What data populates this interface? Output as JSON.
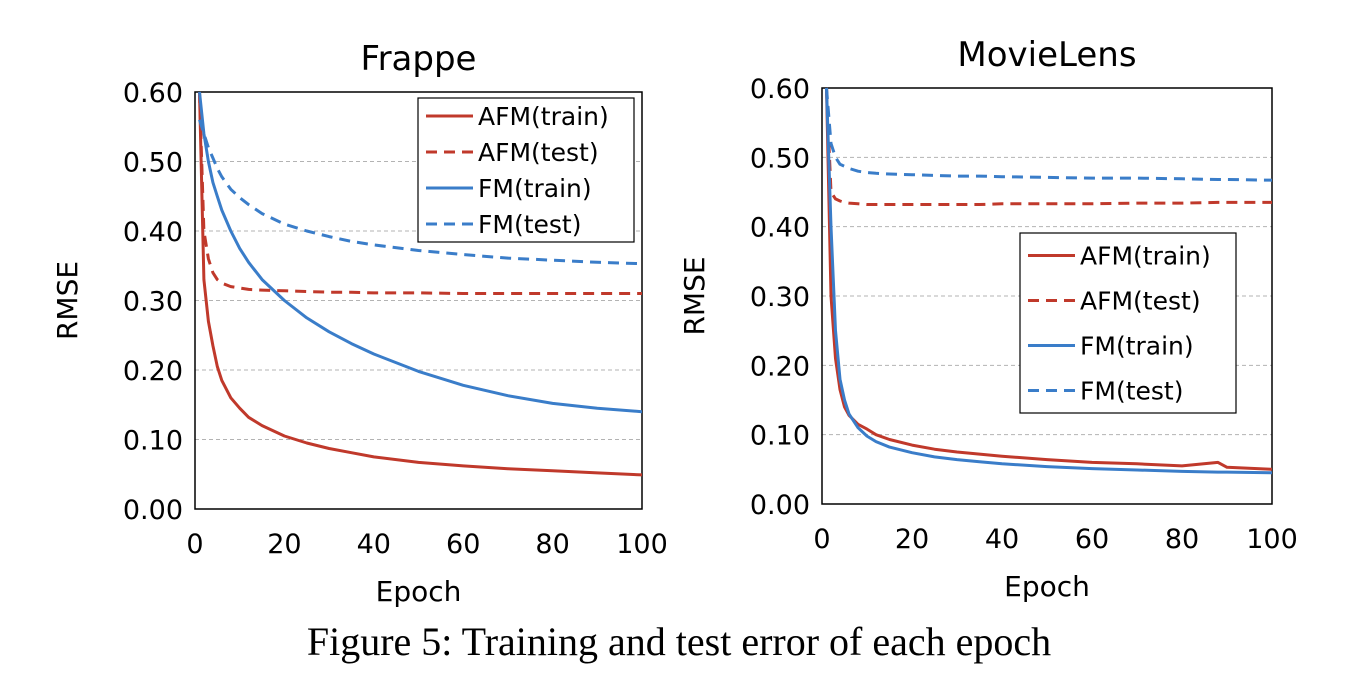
{
  "caption": "Figure 5: Training and test error of each epoch",
  "colors": {
    "afm": "#c0392b",
    "fm": "#3a7dc9",
    "grid": "#b3b3b3"
  },
  "chart_data": [
    {
      "type": "line",
      "title": "Frappe",
      "xlabel": "Epoch",
      "ylabel": "RMSE",
      "xlim": [
        0,
        100
      ],
      "ylim": [
        0,
        0.6
      ],
      "xticks": [
        "0",
        "20",
        "40",
        "60",
        "80",
        "100"
      ],
      "yticks": [
        "0.00",
        "0.10",
        "0.20",
        "0.30",
        "0.40",
        "0.50",
        "0.60"
      ],
      "legend_position": "top-right",
      "x": [
        1,
        2,
        3,
        4,
        5,
        6,
        8,
        10,
        12,
        15,
        20,
        25,
        30,
        35,
        40,
        50,
        60,
        70,
        80,
        90,
        100
      ],
      "series": [
        {
          "name": "AFM(train)",
          "style": "solid",
          "color": "#c0392b",
          "values": [
            0.6,
            0.33,
            0.27,
            0.235,
            0.205,
            0.185,
            0.16,
            0.145,
            0.132,
            0.12,
            0.105,
            0.095,
            0.087,
            0.081,
            0.075,
            0.067,
            0.062,
            0.058,
            0.055,
            0.052,
            0.049
          ]
        },
        {
          "name": "AFM(test)",
          "style": "dashed",
          "color": "#c0392b",
          "values": [
            0.6,
            0.4,
            0.36,
            0.34,
            0.33,
            0.325,
            0.32,
            0.318,
            0.316,
            0.315,
            0.314,
            0.313,
            0.312,
            0.312,
            0.311,
            0.311,
            0.31,
            0.31,
            0.31,
            0.31,
            0.31
          ]
        },
        {
          "name": "FM(train)",
          "style": "solid",
          "color": "#3a7dc9",
          "values": [
            0.6,
            0.54,
            0.5,
            0.47,
            0.45,
            0.43,
            0.4,
            0.375,
            0.355,
            0.33,
            0.3,
            0.275,
            0.255,
            0.238,
            0.223,
            0.198,
            0.178,
            0.163,
            0.152,
            0.145,
            0.14
          ]
        },
        {
          "name": "FM(test)",
          "style": "dashed",
          "color": "#3a7dc9",
          "values": [
            0.56,
            0.54,
            0.52,
            0.505,
            0.49,
            0.478,
            0.46,
            0.448,
            0.438,
            0.425,
            0.41,
            0.4,
            0.392,
            0.385,
            0.38,
            0.372,
            0.366,
            0.361,
            0.358,
            0.355,
            0.353
          ]
        }
      ]
    },
    {
      "type": "line",
      "title": "MovieLens",
      "xlabel": "Epoch",
      "ylabel": "RMSE",
      "xlim": [
        0,
        100
      ],
      "ylim": [
        0,
        0.6
      ],
      "xticks": [
        "0",
        "20",
        "40",
        "60",
        "80",
        "100"
      ],
      "yticks": [
        "0.00",
        "0.10",
        "0.20",
        "0.30",
        "0.40",
        "0.50",
        "0.60"
      ],
      "legend_position": "center-right",
      "x": [
        1,
        2,
        3,
        4,
        5,
        6,
        8,
        10,
        12,
        15,
        20,
        25,
        30,
        35,
        40,
        50,
        60,
        70,
        80,
        88,
        90,
        100
      ],
      "series": [
        {
          "name": "AFM(train)",
          "style": "solid",
          "color": "#c0392b",
          "values": [
            0.6,
            0.3,
            0.21,
            0.165,
            0.14,
            0.128,
            0.115,
            0.108,
            0.1,
            0.093,
            0.085,
            0.079,
            0.075,
            0.072,
            0.069,
            0.064,
            0.06,
            0.058,
            0.055,
            0.06,
            0.053,
            0.05
          ]
        },
        {
          "name": "AFM(test)",
          "style": "dashed",
          "color": "#c0392b",
          "values": [
            0.6,
            0.45,
            0.44,
            0.437,
            0.435,
            0.434,
            0.433,
            0.432,
            0.432,
            0.432,
            0.432,
            0.432,
            0.432,
            0.432,
            0.433,
            0.433,
            0.433,
            0.434,
            0.434,
            0.435,
            0.435,
            0.435
          ]
        },
        {
          "name": "FM(train)",
          "style": "solid",
          "color": "#3a7dc9",
          "values": [
            0.6,
            0.4,
            0.25,
            0.18,
            0.15,
            0.13,
            0.11,
            0.098,
            0.09,
            0.082,
            0.074,
            0.068,
            0.064,
            0.061,
            0.058,
            0.054,
            0.051,
            0.049,
            0.047,
            0.046,
            0.046,
            0.045
          ]
        },
        {
          "name": "FM(test)",
          "style": "dashed",
          "color": "#3a7dc9",
          "values": [
            0.6,
            0.52,
            0.5,
            0.49,
            0.487,
            0.484,
            0.48,
            0.478,
            0.477,
            0.476,
            0.475,
            0.474,
            0.473,
            0.473,
            0.472,
            0.471,
            0.47,
            0.47,
            0.469,
            0.468,
            0.468,
            0.467
          ]
        }
      ]
    }
  ]
}
